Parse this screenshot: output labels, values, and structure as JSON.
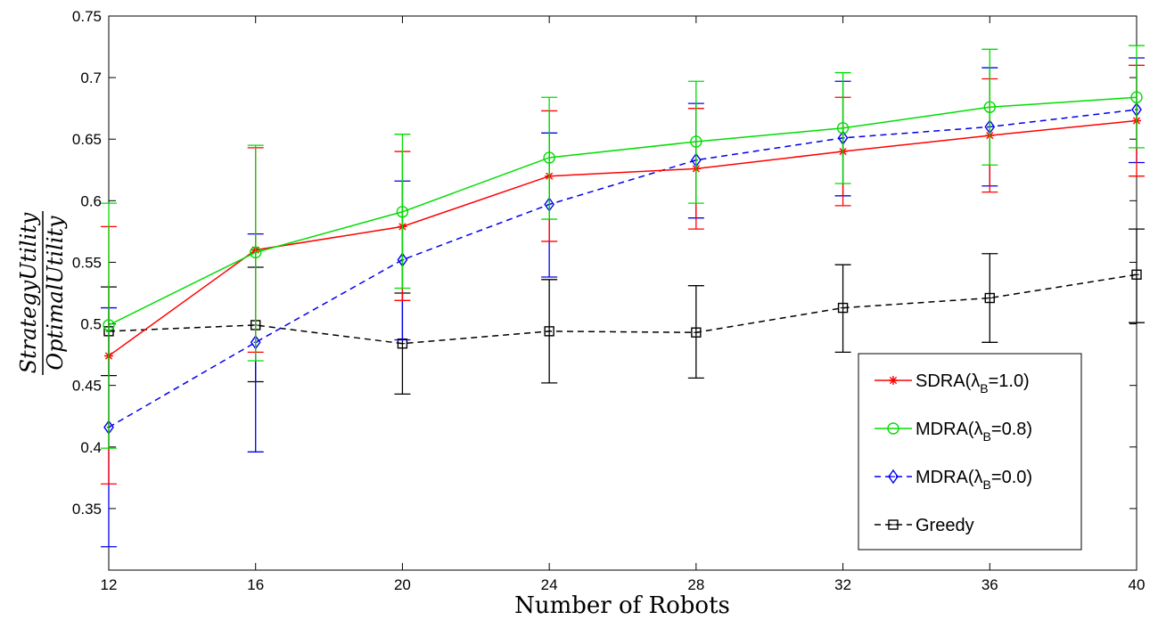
{
  "chart_data": {
    "type": "line",
    "xlabel": "Number of Robots",
    "ylabel_numerator": "StrategyUtility",
    "ylabel_denominator": "OptimalUtility",
    "x": [
      12,
      16,
      20,
      24,
      28,
      32,
      36,
      40
    ],
    "xlim": [
      12,
      40
    ],
    "ylim": [
      0.3,
      0.75
    ],
    "xticks": [
      "12",
      "16",
      "20",
      "24",
      "28",
      "32",
      "36",
      "40"
    ],
    "yticks": [
      "0.35",
      "0.4",
      "0.45",
      "0.5",
      "0.55",
      "0.6",
      "0.65",
      "0.7",
      "0.75"
    ],
    "grid": false,
    "legend_position": "bottom-right",
    "series": [
      {
        "name_main": "SDRA(λ",
        "name_sub": "B",
        "name_tail": "=1.0)",
        "color": "#ff0000",
        "marker": "star",
        "dash": "solid",
        "values": [
          0.474,
          0.56,
          0.579,
          0.62,
          0.626,
          0.64,
          0.653,
          0.665
        ],
        "err_low": [
          0.37,
          0.477,
          0.519,
          0.567,
          0.577,
          0.596,
          0.607,
          0.62
        ],
        "err_high": [
          0.579,
          0.643,
          0.64,
          0.673,
          0.675,
          0.684,
          0.699,
          0.71
        ]
      },
      {
        "name_main": "MDRA(λ",
        "name_sub": "B",
        "name_tail": "=0.8)",
        "color": "#00dd00",
        "marker": "circle",
        "dash": "solid",
        "values": [
          0.499,
          0.558,
          0.591,
          0.635,
          0.648,
          0.659,
          0.676,
          0.684
        ],
        "err_low": [
          0.399,
          0.47,
          0.529,
          0.585,
          0.598,
          0.614,
          0.629,
          0.643
        ],
        "err_high": [
          0.598,
          0.645,
          0.654,
          0.684,
          0.697,
          0.704,
          0.723,
          0.726
        ]
      },
      {
        "name_main": "MDRA(λ",
        "name_sub": "B",
        "name_tail": "=0.0)",
        "color": "#0000ee",
        "marker": "diamond",
        "dash": "dashed",
        "values": [
          0.416,
          0.485,
          0.552,
          0.597,
          0.633,
          0.651,
          0.66,
          0.674
        ],
        "err_low": [
          0.319,
          0.396,
          0.487,
          0.538,
          0.586,
          0.604,
          0.612,
          0.631
        ],
        "err_high": [
          0.513,
          0.573,
          0.616,
          0.655,
          0.679,
          0.697,
          0.708,
          0.716
        ]
      },
      {
        "name_main": "Greedy",
        "name_sub": "",
        "name_tail": "",
        "color": "#000000",
        "marker": "square",
        "dash": "dashed",
        "values": [
          0.494,
          0.499,
          0.484,
          0.494,
          0.493,
          0.513,
          0.521,
          0.54
        ],
        "err_low": [
          0.458,
          0.453,
          0.443,
          0.452,
          0.456,
          0.477,
          0.485,
          0.501
        ],
        "err_high": [
          0.53,
          0.546,
          0.525,
          0.536,
          0.531,
          0.548,
          0.557,
          0.577
        ]
      }
    ]
  }
}
